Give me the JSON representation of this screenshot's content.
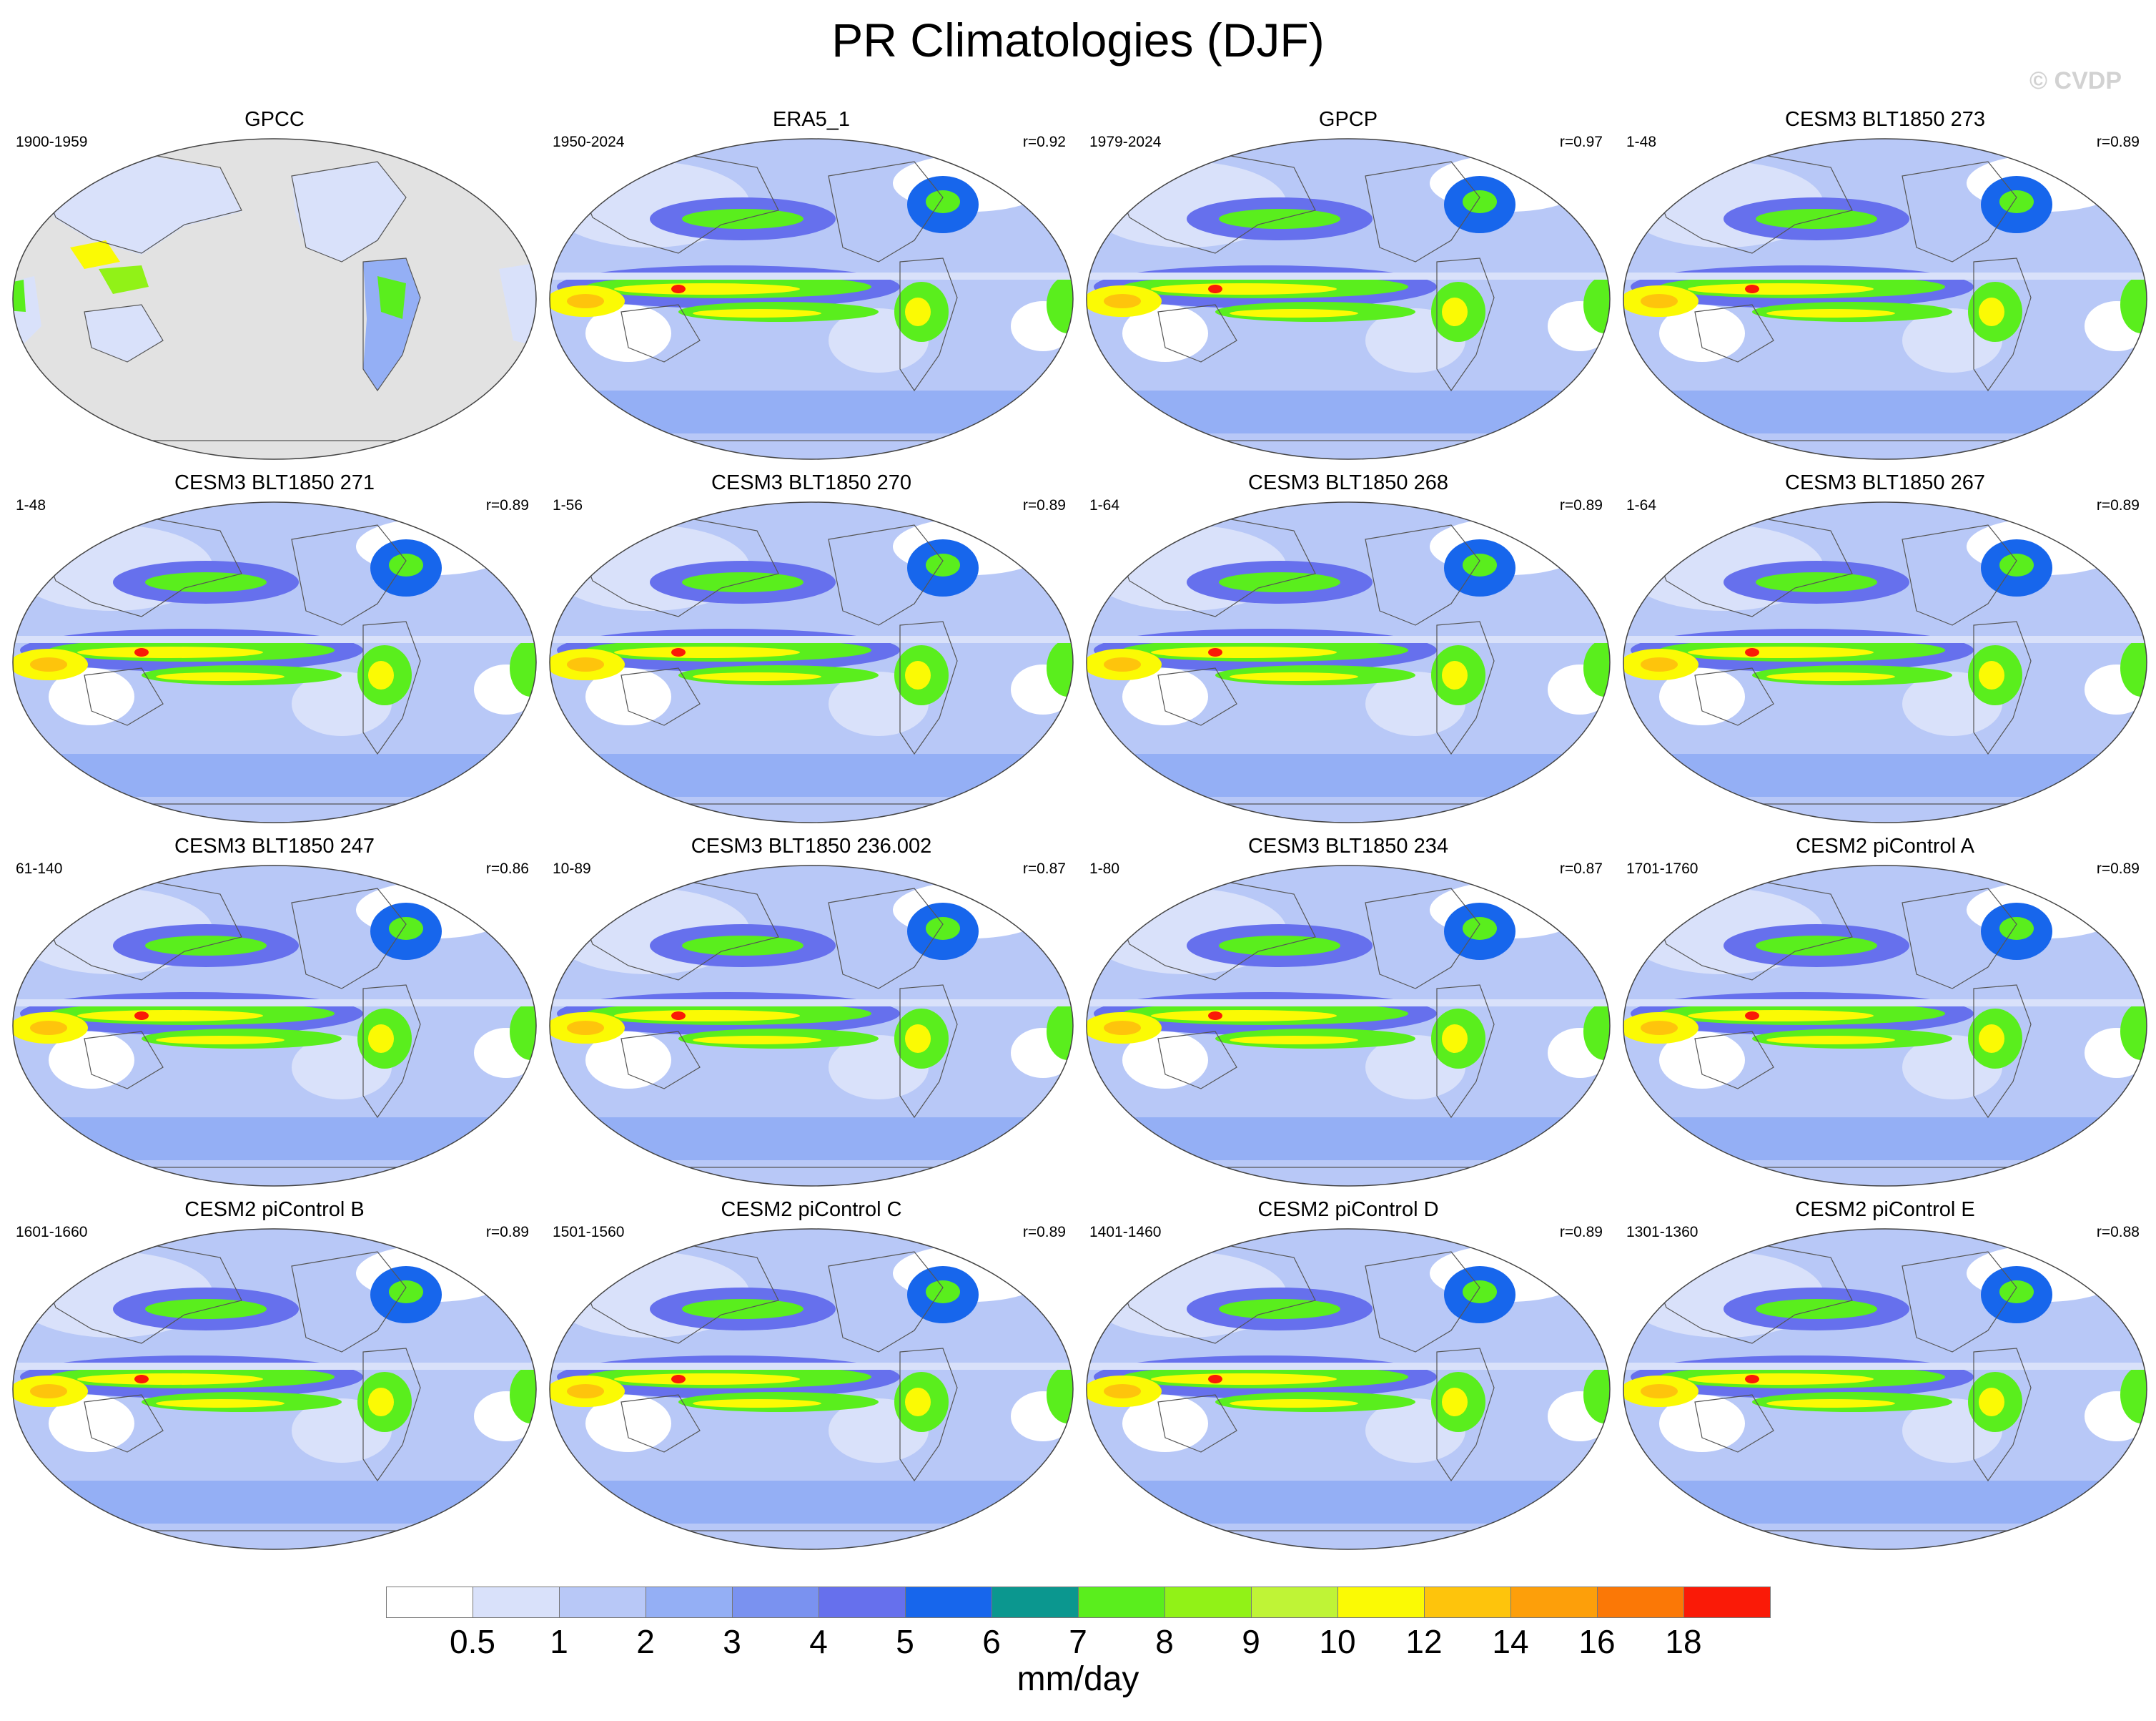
{
  "title": "PR Climatologies (DJF)",
  "watermark": "© CVDP",
  "colorbar": {
    "colors": [
      "#ffffff",
      "#d9e1fa",
      "#b8c8f7",
      "#94aff5",
      "#7a92f0",
      "#6670ed",
      "#1766ec",
      "#0b978f",
      "#5aee1d",
      "#91f217",
      "#bff436",
      "#fbfa04",
      "#fec40c",
      "#fd9f0a",
      "#fb7806",
      "#fa1a07"
    ],
    "labels": [
      "0.5",
      "1",
      "2",
      "3",
      "4",
      "5",
      "6",
      "7",
      "8",
      "9",
      "10",
      "12",
      "14",
      "16",
      "18"
    ],
    "units": "mm/day"
  },
  "panels": [
    {
      "title": "GPCC",
      "years": "1900-1959",
      "r": "",
      "land_only": true
    },
    {
      "title": "ERA5_1",
      "years": "1950-2024",
      "r": "r=0.92",
      "land_only": false
    },
    {
      "title": "GPCP",
      "years": "1979-2024",
      "r": "r=0.97",
      "land_only": false
    },
    {
      "title": "CESM3 BLT1850 273",
      "years": "1-48",
      "r": "r=0.89",
      "land_only": false
    },
    {
      "title": "CESM3 BLT1850 271",
      "years": "1-48",
      "r": "r=0.89",
      "land_only": false
    },
    {
      "title": "CESM3 BLT1850 270",
      "years": "1-56",
      "r": "r=0.89",
      "land_only": false
    },
    {
      "title": "CESM3 BLT1850 268",
      "years": "1-64",
      "r": "r=0.89",
      "land_only": false
    },
    {
      "title": "CESM3 BLT1850 267",
      "years": "1-64",
      "r": "r=0.89",
      "land_only": false
    },
    {
      "title": "CESM3 BLT1850 247",
      "years": "61-140",
      "r": "r=0.86",
      "land_only": false
    },
    {
      "title": "CESM3 BLT1850 236.002",
      "years": "10-89",
      "r": "r=0.87",
      "land_only": false
    },
    {
      "title": "CESM3 BLT1850 234",
      "years": "1-80",
      "r": "r=0.87",
      "land_only": false
    },
    {
      "title": "CESM2 piControl A",
      "years": "1701-1760",
      "r": "r=0.89",
      "land_only": false
    },
    {
      "title": "CESM2 piControl B",
      "years": "1601-1660",
      "r": "r=0.89",
      "land_only": false
    },
    {
      "title": "CESM2 piControl C",
      "years": "1501-1560",
      "r": "r=0.89",
      "land_only": false
    },
    {
      "title": "CESM2 piControl D",
      "years": "1401-1460",
      "r": "r=0.89",
      "land_only": false
    },
    {
      "title": "CESM2 piControl E",
      "years": "1301-1360",
      "r": "r=0.88",
      "land_only": false
    }
  ]
}
